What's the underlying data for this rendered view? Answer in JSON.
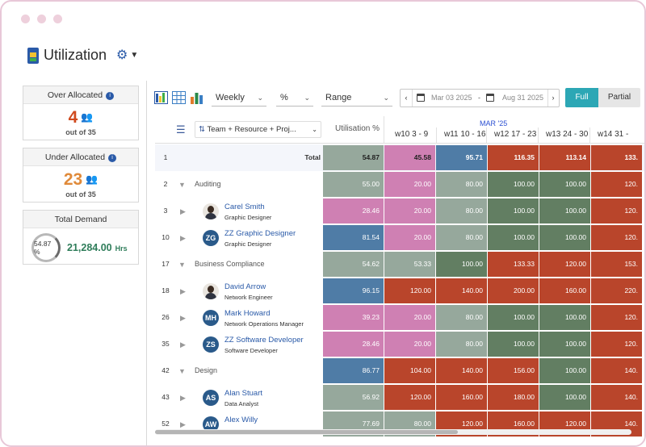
{
  "app": {
    "title": "Utilization"
  },
  "summary": {
    "over": {
      "label": "Over Allocated",
      "value": "4",
      "out_of": "out of 35",
      "color": "#d04a1e"
    },
    "under": {
      "label": "Under Allocated",
      "value": "23",
      "out_of": "out of 35",
      "color": "#e08a3a"
    },
    "demand": {
      "label": "Total Demand",
      "percent": "54.87 %",
      "value": "21,284.00",
      "unit": "Hrs"
    }
  },
  "toolbar": {
    "period": "Weekly",
    "unit": "%",
    "range": "Range",
    "date_start": "Mar 03 2025",
    "date_sep": "-",
    "date_end": "Aug 31 2025",
    "full_label": "Full",
    "partial_label": "Partial"
  },
  "grid": {
    "group_by": "Team + Resource + Proj...",
    "util_header": "Utilisation %",
    "month": "MAR '25",
    "weeks": [
      "w10  3 - 9",
      "w11  10 - 16",
      "w12  17 - 23",
      "w13  24 - 30",
      "w14  31 -"
    ],
    "rows": [
      {
        "num": "1",
        "kind": "total",
        "label": "Total",
        "util": "54.87",
        "vals": [
          "45.58",
          "95.71",
          "116.35",
          "113.14",
          "133."
        ]
      },
      {
        "num": "2",
        "kind": "group",
        "label": "Auditing",
        "util": "55.00",
        "vals": [
          "20.00",
          "80.00",
          "100.00",
          "100.00",
          "120."
        ]
      },
      {
        "num": "3",
        "kind": "person",
        "name": "Carel Smith",
        "role": "Graphic Designer",
        "initials": "",
        "util": "28.46",
        "vals": [
          "20.00",
          "80.00",
          "100.00",
          "100.00",
          "120."
        ]
      },
      {
        "num": "10",
        "kind": "person",
        "name": "ZZ Graphic Designer",
        "role": "Graphic Designer",
        "initials": "ZG",
        "util": "81.54",
        "vals": [
          "20.00",
          "80.00",
          "100.00",
          "100.00",
          "120."
        ]
      },
      {
        "num": "17",
        "kind": "group",
        "label": "Business Compliance",
        "util": "54.62",
        "vals": [
          "53.33",
          "100.00",
          "133.33",
          "120.00",
          "153."
        ]
      },
      {
        "num": "18",
        "kind": "person",
        "name": "David Arrow",
        "role": "Network Engineer",
        "initials": "",
        "util": "96.15",
        "vals": [
          "120.00",
          "140.00",
          "200.00",
          "160.00",
          "220."
        ]
      },
      {
        "num": "26",
        "kind": "person",
        "name": "Mark Howard",
        "role": "Network Operations Manager",
        "initials": "MH",
        "util": "39.23",
        "vals": [
          "20.00",
          "80.00",
          "100.00",
          "100.00",
          "120."
        ]
      },
      {
        "num": "35",
        "kind": "person",
        "name": "ZZ Software Developer",
        "role": "Software Developer",
        "initials": "ZS",
        "util": "28.46",
        "vals": [
          "20.00",
          "80.00",
          "100.00",
          "100.00",
          "120."
        ]
      },
      {
        "num": "42",
        "kind": "group",
        "label": "Design",
        "util": "86.77",
        "vals": [
          "104.00",
          "140.00",
          "156.00",
          "100.00",
          "140."
        ]
      },
      {
        "num": "43",
        "kind": "person",
        "name": "Alan Stuart",
        "role": "Data Analyst",
        "initials": "AS",
        "util": "56.92",
        "vals": [
          "120.00",
          "160.00",
          "180.00",
          "100.00",
          "140."
        ]
      },
      {
        "num": "52",
        "kind": "person",
        "name": "Alex Willy",
        "role": "",
        "initials": "AW",
        "util": "77.69",
        "vals": [
          "80.00",
          "120.00",
          "160.00",
          "120.00",
          "140."
        ]
      }
    ]
  },
  "colors": {
    "grey": "#96a89c",
    "pink": "#cf80b3",
    "blue": "#4f7ca6",
    "dark_green": "#627e62",
    "red": "#b9452b",
    "accent": "#2ca7b5"
  }
}
